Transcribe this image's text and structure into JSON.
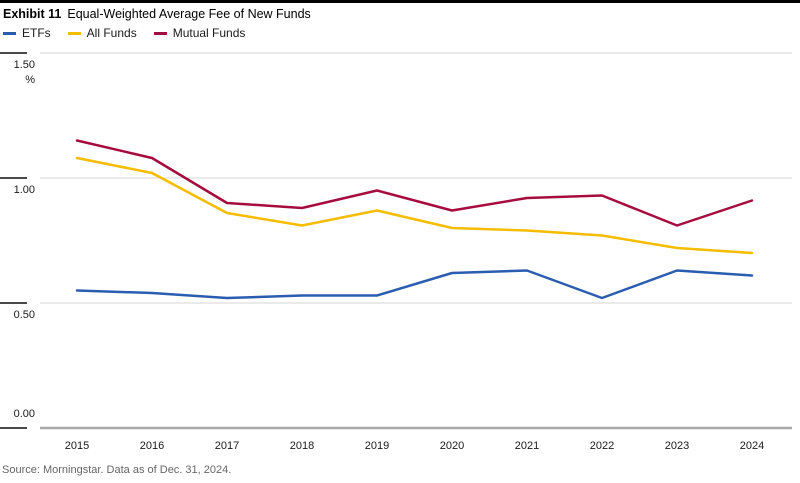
{
  "header": {
    "exhibit_label": "Exhibit 11",
    "title": "Equal-Weighted Average Fee of New Funds"
  },
  "legend": [
    {
      "label": "ETFs",
      "color": "#2a5db0"
    },
    {
      "label": "All Funds",
      "color": "#f5bc00"
    },
    {
      "label": "Mutual Funds",
      "color": "#a60d3e"
    }
  ],
  "chart_data": {
    "type": "line",
    "title": "Equal-Weighted Average Fee of New Funds",
    "x": [
      2015,
      2016,
      2017,
      2018,
      2019,
      2020,
      2021,
      2022,
      2023,
      2024
    ],
    "series": [
      {
        "name": "ETFs",
        "color": "#2a5db0",
        "values": [
          0.55,
          0.54,
          0.52,
          0.53,
          0.53,
          0.62,
          0.63,
          0.52,
          0.63,
          0.61
        ]
      },
      {
        "name": "All Funds",
        "color": "#f5bc00",
        "values": [
          1.08,
          1.02,
          0.86,
          0.81,
          0.87,
          0.8,
          0.79,
          0.77,
          0.72,
          0.7
        ]
      },
      {
        "name": "Mutual Funds",
        "color": "#a60d3e",
        "values": [
          1.15,
          1.08,
          0.9,
          0.88,
          0.95,
          0.87,
          0.92,
          0.93,
          0.81,
          0.91
        ]
      }
    ],
    "unit_label": "%",
    "y_ticks": [
      0.0,
      0.5,
      1.0,
      1.5
    ],
    "y_tick_labels": [
      "0.00",
      "0.50",
      "1.00",
      "1.50"
    ],
    "ylim": [
      0,
      1.5
    ],
    "grid": true,
    "legend_position": "top-left"
  },
  "footer": {
    "source": "Source: Morningstar.  Data as of Dec. 31, 2024."
  }
}
